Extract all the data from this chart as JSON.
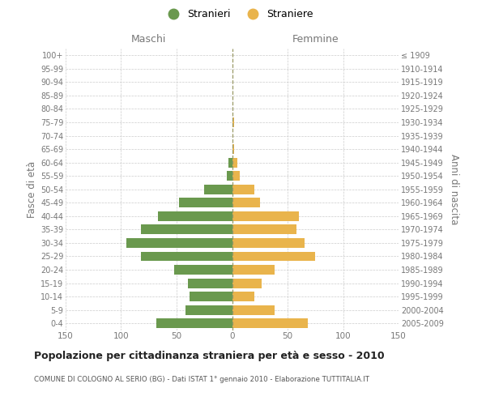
{
  "age_groups_bottom_to_top": [
    "0-4",
    "5-9",
    "10-14",
    "15-19",
    "20-24",
    "25-29",
    "30-34",
    "35-39",
    "40-44",
    "45-49",
    "50-54",
    "55-59",
    "60-64",
    "65-69",
    "70-74",
    "75-79",
    "80-84",
    "85-89",
    "90-94",
    "95-99",
    "100+"
  ],
  "birth_years_bottom_to_top": [
    "2005-2009",
    "2000-2004",
    "1995-1999",
    "1990-1994",
    "1985-1989",
    "1980-1984",
    "1975-1979",
    "1970-1974",
    "1965-1969",
    "1960-1964",
    "1955-1959",
    "1950-1954",
    "1945-1949",
    "1940-1944",
    "1935-1939",
    "1930-1934",
    "1925-1929",
    "1920-1924",
    "1915-1919",
    "1910-1914",
    "≤ 1909"
  ],
  "males_bottom_to_top": [
    68,
    42,
    38,
    40,
    52,
    82,
    95,
    82,
    67,
    48,
    25,
    5,
    3,
    0,
    0,
    0,
    0,
    0,
    0,
    0,
    0
  ],
  "females_bottom_to_top": [
    68,
    38,
    20,
    27,
    38,
    75,
    65,
    58,
    60,
    25,
    20,
    7,
    5,
    2,
    0,
    2,
    0,
    0,
    0,
    0,
    0
  ],
  "male_color": "#6a994e",
  "female_color": "#e9b44c",
  "background_color": "#ffffff",
  "grid_color": "#cccccc",
  "title": "Popolazione per cittadinanza straniera per età e sesso - 2010",
  "subtitle": "COMUNE DI COLOGNO AL SERIO (BG) - Dati ISTAT 1° gennaio 2010 - Elaborazione TUTTITALIA.IT",
  "xlabel_left": "Maschi",
  "xlabel_right": "Femmine",
  "ylabel_left": "Fasce di età",
  "ylabel_right": "Anni di nascita",
  "legend_male": "Stranieri",
  "legend_female": "Straniere",
  "xlim": 150,
  "xticks": [
    -150,
    -100,
    -50,
    0,
    50,
    100,
    150
  ],
  "xtick_labels": [
    "150",
    "100",
    "50",
    "0",
    "50",
    "100",
    "150"
  ]
}
